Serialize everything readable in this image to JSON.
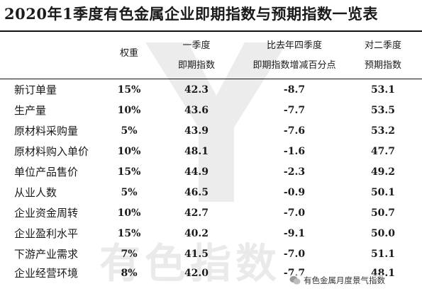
{
  "title": "2020年1季度有色金属企业即期指数与预期指数一览表",
  "headers": {
    "weight": "权重",
    "current_line1": "一季度",
    "current_line2": "即期指数",
    "change_line1": "比去年四季度",
    "change_line2": "即期指数增减百分点",
    "expected_line1": "对二季度",
    "expected_line2": "预期指数"
  },
  "rows": [
    {
      "name": "新订单量",
      "weight": "15%",
      "current": "42.3",
      "change": "-8.7",
      "expected": "53.1"
    },
    {
      "name": "生产量",
      "weight": "10%",
      "current": "43.6",
      "change": "-7.7",
      "expected": "53.5"
    },
    {
      "name": "原材料采购量",
      "weight": "5%",
      "current": "43.9",
      "change": "-7.6",
      "expected": "53.2"
    },
    {
      "name": "原材料购入单价",
      "weight": "10%",
      "current": "48.1",
      "change": "-1.6",
      "expected": "47.7"
    },
    {
      "name": "单位产品售价",
      "weight": "15%",
      "current": "44.9",
      "change": "-2.3",
      "expected": "49.2"
    },
    {
      "name": "从业人数",
      "weight": "5%",
      "current": "46.5",
      "change": "-0.9",
      "expected": "50.1"
    },
    {
      "name": "企业资金周转",
      "weight": "10%",
      "current": "42.7",
      "change": "-7.0",
      "expected": "50.7"
    },
    {
      "name": "企业盈利水平",
      "weight": "15%",
      "current": "40.2",
      "change": "-9.1",
      "expected": "50.0"
    },
    {
      "name": "下游产业需求",
      "weight": "7%",
      "current": "41.5",
      "change": "-7.0",
      "expected": "51.1"
    },
    {
      "name": "企业经营环境",
      "weight": "8%",
      "current": "42.0",
      "change": "-7.7",
      "expected": "48.1"
    }
  ],
  "watermark": {
    "text": "有色指数",
    "logo_text": "YST"
  },
  "credit": {
    "icon": "wechat-bubble-icon",
    "text": "有色金属月度景气指数"
  },
  "colors": {
    "text": "#1a1a1a",
    "rule": "#111111",
    "background": "#ffffff"
  }
}
